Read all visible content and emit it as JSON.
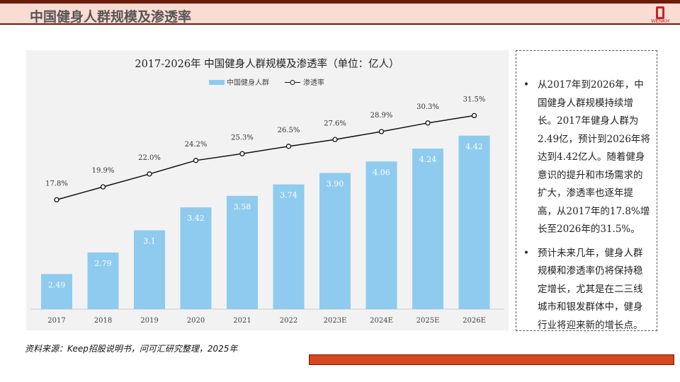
{
  "header": {
    "title": "中国健身人群规模及渗透率",
    "logo_text": "WENKH"
  },
  "chart_data": {
    "type": "bar+line",
    "title": "2017-2026年 中国健身人群规模及渗透率（单位：亿人）",
    "categories": [
      "2017",
      "2018",
      "2019",
      "2020",
      "2021",
      "2022",
      "2023E",
      "2024E",
      "2025E",
      "2026E"
    ],
    "series": [
      {
        "name": "中国健身人群",
        "type": "bar",
        "color": "#8ecbee",
        "values": [
          2.49,
          2.79,
          3.1,
          3.42,
          3.58,
          3.74,
          3.9,
          4.06,
          4.24,
          4.42
        ],
        "labels": [
          "2.49",
          "2.79",
          "3.1",
          "3.42",
          "3.58",
          "3.74",
          "3.90",
          "4.06",
          "4.24",
          "4.42"
        ]
      },
      {
        "name": "渗透率",
        "type": "line",
        "color": "#111111",
        "values": [
          17.8,
          19.9,
          22.0,
          24.2,
          25.3,
          26.5,
          27.6,
          28.9,
          30.3,
          31.5
        ],
        "labels": [
          "17.8%",
          "19.9%",
          "22.0%",
          "24.2%",
          "25.3%",
          "26.5%",
          "27.6%",
          "28.9%",
          "30.3%",
          "31.5%"
        ]
      }
    ],
    "bar_axis_range": [
      2,
      5
    ],
    "line_axis_range": [
      0,
      35
    ],
    "legend_placement": "top",
    "grid": false
  },
  "note": {
    "bullets": [
      "从2017年到2026年，中国健身人群规模持续增长。2017年健身人群为2.49亿，预计到2026年将达到4.42亿人。随着健身意识的提升和市场需求的扩大，渗透率也逐年提高，从2017年的17.8%增长至2026年的31.5%。",
      "预计未来几年，健身人群规模和渗透率仍将保持稳定增长，尤其是在二三线城市和银发群体中，健身行业将迎来新的增长点。"
    ]
  },
  "source": "资料来源：Keep招股说明书，问可汇研究整理，2025年"
}
